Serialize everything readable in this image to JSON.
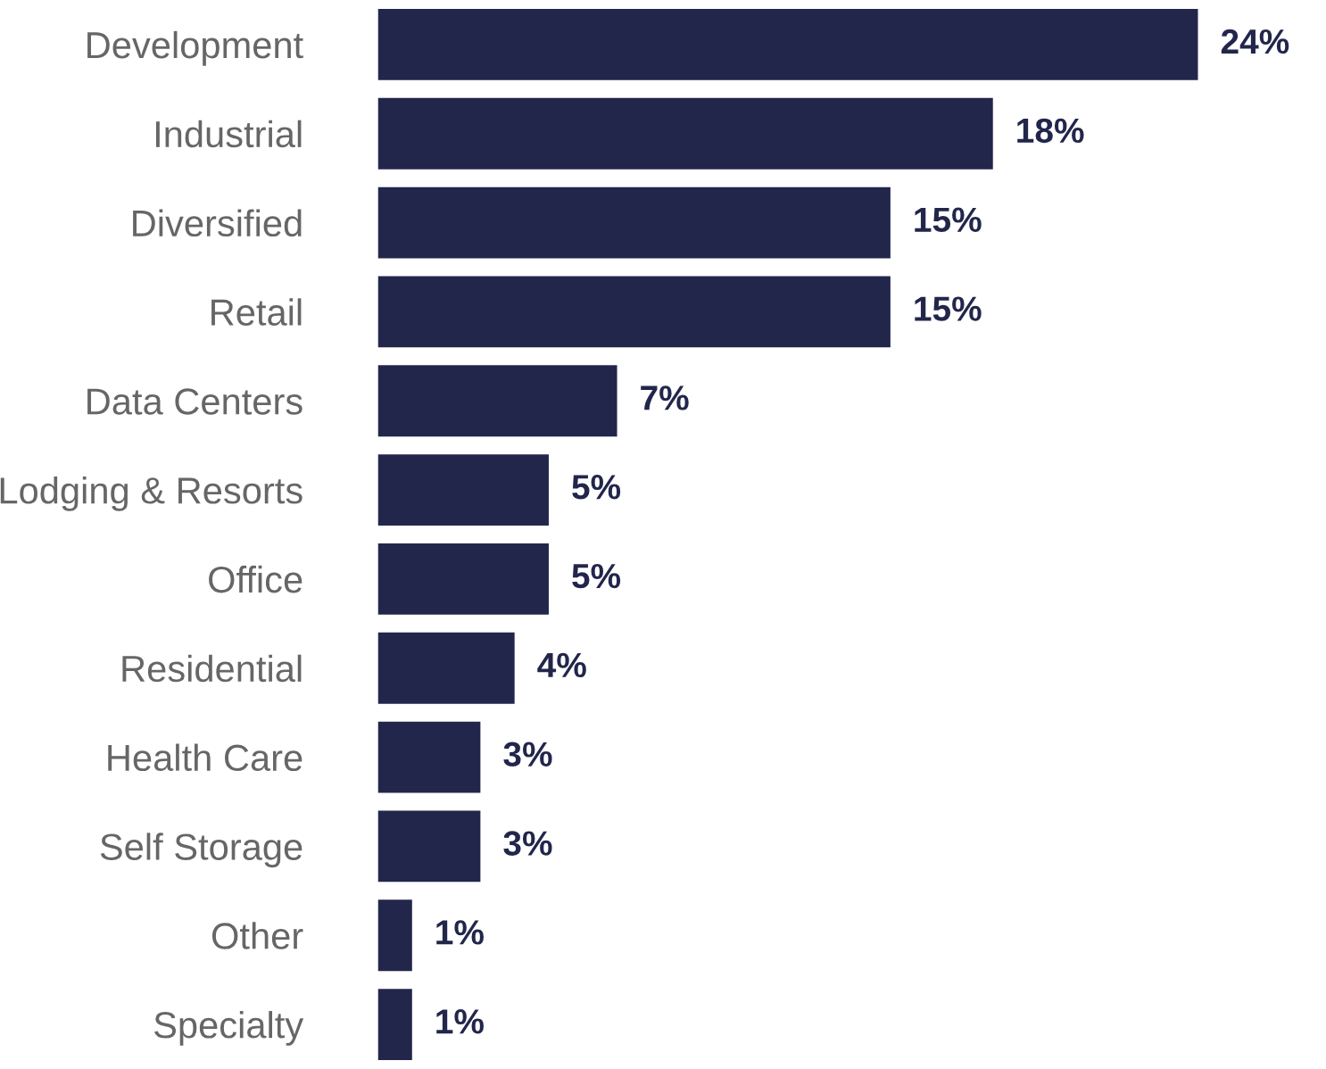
{
  "chart_data": {
    "type": "bar",
    "orientation": "horizontal",
    "categories": [
      "Development",
      "Industrial",
      "Diversified",
      "Retail",
      "Data Centers",
      "Lodging & Resorts",
      "Office",
      "Residential",
      "Health Care",
      "Self Storage",
      "Other",
      "Specialty"
    ],
    "values": [
      24,
      18,
      15,
      15,
      7,
      5,
      5,
      4,
      3,
      3,
      1,
      1
    ],
    "value_labels": [
      "24%",
      "18%",
      "15%",
      "15%",
      "7%",
      "5%",
      "5%",
      "4%",
      "3%",
      "3%",
      "1%",
      "1%"
    ],
    "color": "#22264b",
    "grid": false,
    "legend": false
  }
}
